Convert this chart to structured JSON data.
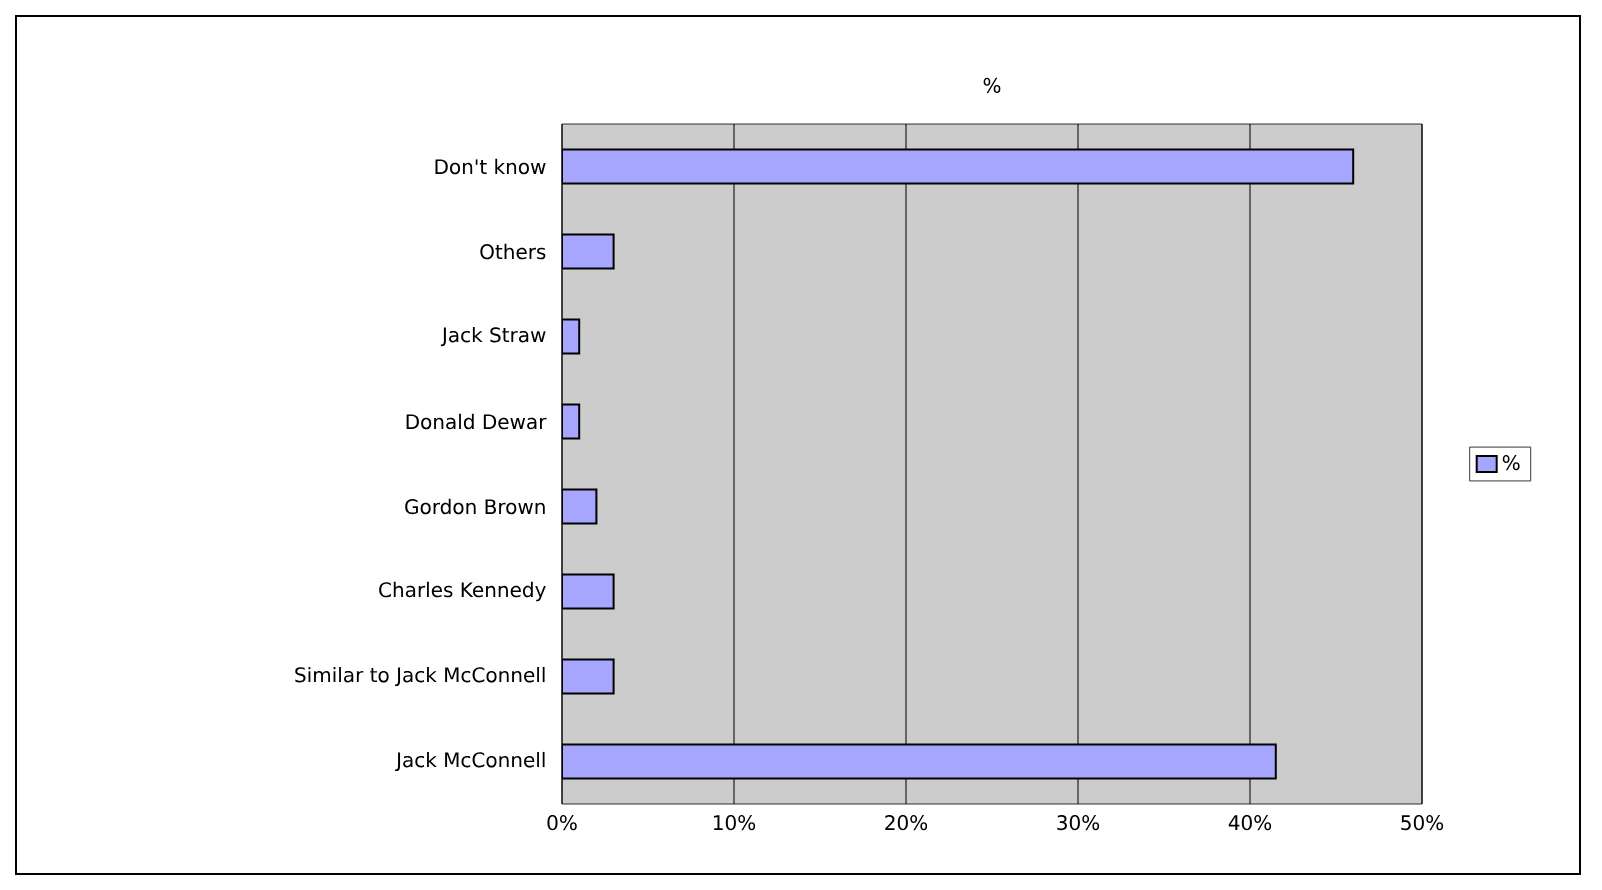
{
  "chart_data": {
    "type": "bar",
    "orientation": "horizontal",
    "title": "%",
    "categories": [
      "Don't know",
      "Others",
      "Jack  Straw",
      "Donald Dewar",
      "Gordon Brown",
      "Charles Kennedy",
      "Similar to Jack McConnell",
      "Jack McConnell"
    ],
    "series": [
      {
        "name": "%",
        "color": "#a6a6ff",
        "values": [
          46,
          3,
          1,
          1,
          2,
          3,
          3,
          41.5
        ]
      }
    ],
    "xlim": [
      0,
      50
    ],
    "xticks": [
      {
        "value": 0,
        "label": "0%"
      },
      {
        "value": 10,
        "label": "10%"
      },
      {
        "value": 20,
        "label": "20%"
      },
      {
        "value": 30,
        "label": "30%"
      },
      {
        "value": 40,
        "label": "40%"
      },
      {
        "value": 50,
        "label": "50%"
      }
    ],
    "grid": "x",
    "legend": "right"
  }
}
